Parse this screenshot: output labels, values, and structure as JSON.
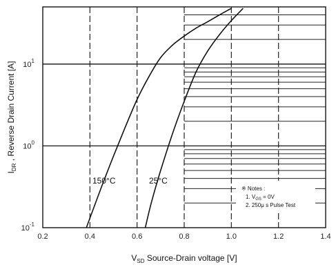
{
  "chart_data": {
    "type": "line",
    "xlabel_prefix": "V",
    "xlabel_sub": "SD",
    "xlabel_text": " Source-Drain voltage [V]",
    "ylabel_prefix": "I",
    "ylabel_sub": "DR",
    "ylabel_text": " , Reverse Drain Current [A]",
    "xlim": [
      0.2,
      1.4
    ],
    "ylim": [
      0.1,
      50
    ],
    "y_scale": "log",
    "x_ticks": [
      "0.2",
      "0.4",
      "0.6",
      "0.8",
      "1.0",
      "1.2",
      "1.4"
    ],
    "y_ticks": [
      {
        "base": "10",
        "exp": "-1",
        "value": 0.1
      },
      {
        "base": "10",
        "exp": "0",
        "value": 1
      },
      {
        "base": "10",
        "exp": "1",
        "value": 10
      }
    ],
    "grid": true,
    "series": [
      {
        "name": "150°C",
        "x": [
          0.385,
          0.45,
          0.5,
          0.55,
          0.6,
          0.65,
          0.7,
          0.75,
          0.8,
          0.85,
          0.9,
          0.95,
          1.0
        ],
        "y": [
          0.1,
          0.32,
          0.75,
          1.7,
          3.7,
          7.0,
          12.0,
          17.0,
          22.0,
          27.5,
          33.0,
          40.0,
          48.0
        ]
      },
      {
        "name": "25°C",
        "x": [
          0.635,
          0.66,
          0.7,
          0.75,
          0.8,
          0.85,
          0.9,
          0.95,
          1.0,
          1.05
        ],
        "y": [
          0.1,
          0.2,
          0.5,
          1.4,
          3.5,
          8.0,
          14.5,
          23.0,
          34.0,
          48.0
        ]
      }
    ],
    "notes": {
      "title": "※ Notes :",
      "line1_prefix": "1. V",
      "line1_sub": "GS",
      "line1_suffix": " = 0V",
      "line2": "2. 250μ s Pulse Test"
    }
  }
}
